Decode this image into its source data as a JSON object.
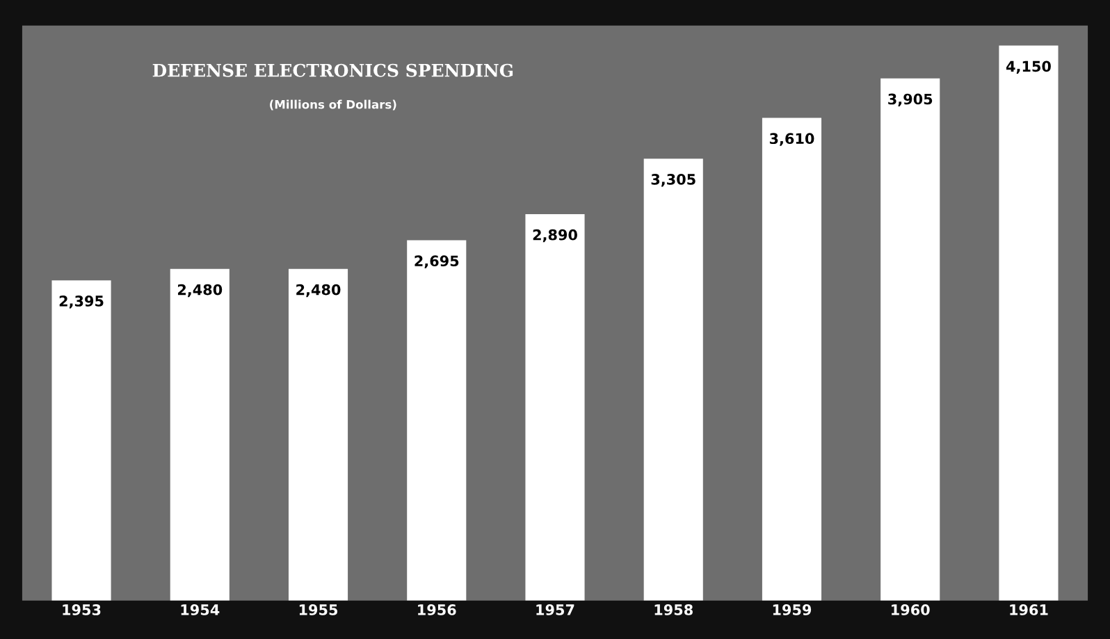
{
  "chart_data": {
    "type": "bar",
    "title": "DEFENSE ELECTRONICS SPENDING",
    "subtitle": "(Millions of Dollars)",
    "categories": [
      "1953",
      "1954",
      "1955",
      "1956",
      "1957",
      "1958",
      "1959",
      "1960",
      "1961"
    ],
    "values": [
      2395,
      2480,
      2480,
      2695,
      2890,
      3305,
      3610,
      3905,
      4150
    ],
    "color": "#ffffff",
    "data_labels": true,
    "value_labels": [
      "2,395",
      "2,480",
      "2,480",
      "2,695",
      "2,890",
      "3,305",
      "3,610",
      "3,905",
      "4,150"
    ],
    "ylim": [
      0,
      4300
    ],
    "tick_labels": "x",
    "grid": false,
    "legend": false
  }
}
